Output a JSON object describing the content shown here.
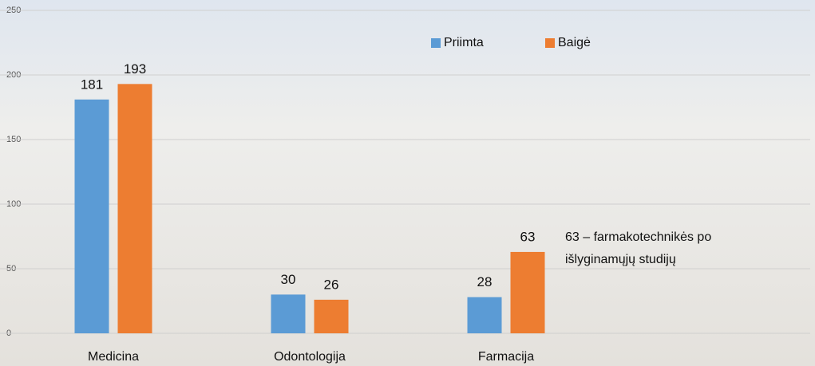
{
  "chart_data": {
    "type": "bar",
    "categories": [
      "Medicina",
      "Odontologija",
      "Farmacija"
    ],
    "series": [
      {
        "name": "Priimta",
        "color": "#5b9bd5",
        "values": [
          181,
          30,
          28
        ]
      },
      {
        "name": "Baigė",
        "color": "#ed7d31",
        "values": [
          193,
          26,
          63
        ]
      }
    ],
    "ylim": [
      0,
      250
    ],
    "yticks": [
      0,
      50,
      100,
      150,
      200,
      250
    ],
    "grid": true,
    "legend": "top-right",
    "annotation": [
      "63 – farmakotechnikės po",
      "išlyginamųjų studijų"
    ]
  }
}
